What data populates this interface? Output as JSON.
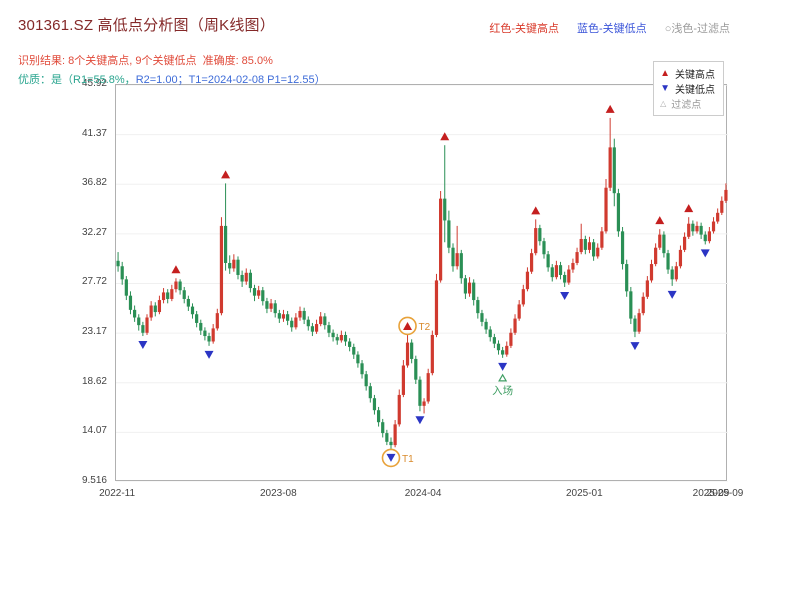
{
  "header": {
    "title": "301361.SZ 高低点分析图（周K线图）",
    "legend_high": "红色-关键高点",
    "legend_low": "蓝色-关键低点",
    "legend_filtered": "○浅色-过滤点",
    "result_line": "识别结果: 8个关键高点, 9个关键低点  准确度: 85.0%",
    "quality_prefix": "优质：是（R1=55.8%，",
    "quality_link": "R2=1.00；T1=2024-02-08 P1=12.55）"
  },
  "chart_data": {
    "type": "candlestick",
    "symbol": "301361.SZ",
    "freq": "weekly",
    "start_date": "2022-11-04",
    "ylim": [
      9.516,
      45.92
    ],
    "y_ticks": [
      "45.92",
      "41.37",
      "36.82",
      "32.27",
      "27.72",
      "23.17",
      "18.62",
      "14.07",
      "9.516"
    ],
    "x_ticks": [
      {
        "week": 0,
        "label": "2022-11"
      },
      {
        "week": 39,
        "label": "2023-08"
      },
      {
        "week": 74,
        "label": "2024-04"
      },
      {
        "week": 113,
        "label": "2025-01"
      },
      {
        "week": 148,
        "label": "2025-09"
      }
    ],
    "x_end_label": "2025-09",
    "colors": {
      "up": "#d03a2f",
      "down": "#2a8f55",
      "high_marker": "#c41f1f",
      "low_marker": "#2b35c4",
      "circle": "#e8a23a",
      "circle_label": "#d98a2b",
      "entry": "#3f9e63",
      "grid": "#f0f0f0"
    },
    "legend": {
      "high": "关键高点",
      "low": "关键低点",
      "filtered": "过滤点"
    },
    "key_highs": [
      {
        "week": 14,
        "value": 28.2
      },
      {
        "week": 26,
        "value": 36.9
      },
      {
        "week": 70,
        "value": 23.0,
        "label": "T2",
        "circled": true
      },
      {
        "week": 79,
        "value": 40.4
      },
      {
        "week": 101,
        "value": 33.6
      },
      {
        "week": 119,
        "value": 42.9
      },
      {
        "week": 131,
        "value": 32.7
      },
      {
        "week": 138,
        "value": 33.8
      }
    ],
    "key_lows": [
      {
        "week": 6,
        "value": 22.9
      },
      {
        "week": 22,
        "value": 22.0
      },
      {
        "week": 66,
        "value": 12.55,
        "label": "T1",
        "circled": true
      },
      {
        "week": 73,
        "value": 16.0
      },
      {
        "week": 93,
        "value": 20.9
      },
      {
        "week": 108,
        "value": 27.4
      },
      {
        "week": 125,
        "value": 22.8
      },
      {
        "week": 134,
        "value": 27.5
      },
      {
        "week": 142,
        "value": 31.3
      }
    ],
    "entry_annotation": {
      "week": 93,
      "label": "入场"
    },
    "candles": [
      [
        29.8,
        30.6,
        28.8,
        29.3
      ],
      [
        29.3,
        29.7,
        27.6,
        28.1
      ],
      [
        28.1,
        28.4,
        26.2,
        26.6
      ],
      [
        26.6,
        27.0,
        24.9,
        25.3
      ],
      [
        25.3,
        25.7,
        24.2,
        24.6
      ],
      [
        24.6,
        24.9,
        23.4,
        23.9
      ],
      [
        23.9,
        24.2,
        22.9,
        23.2
      ],
      [
        23.2,
        24.9,
        23.0,
        24.6
      ],
      [
        24.6,
        26.1,
        24.3,
        25.7
      ],
      [
        25.7,
        26.0,
        24.7,
        25.1
      ],
      [
        25.1,
        26.6,
        24.9,
        26.2
      ],
      [
        26.2,
        27.3,
        25.9,
        26.9
      ],
      [
        26.9,
        27.2,
        25.9,
        26.3
      ],
      [
        26.3,
        27.6,
        26.1,
        27.2
      ],
      [
        27.2,
        28.2,
        26.9,
        27.9
      ],
      [
        27.9,
        28.1,
        26.7,
        27.1
      ],
      [
        27.1,
        27.4,
        25.9,
        26.3
      ],
      [
        26.3,
        26.6,
        25.2,
        25.6
      ],
      [
        25.6,
        25.9,
        24.5,
        24.9
      ],
      [
        24.9,
        25.2,
        23.7,
        24.1
      ],
      [
        24.1,
        24.4,
        23.0,
        23.4
      ],
      [
        23.4,
        23.7,
        22.5,
        22.9
      ],
      [
        22.9,
        23.2,
        22.0,
        22.4
      ],
      [
        22.4,
        24.0,
        22.2,
        23.6
      ],
      [
        23.6,
        25.4,
        23.4,
        25.0
      ],
      [
        25.0,
        33.8,
        24.8,
        33.0
      ],
      [
        33.0,
        36.9,
        28.9,
        29.6
      ],
      [
        29.6,
        30.3,
        28.6,
        29.1
      ],
      [
        29.1,
        30.4,
        28.8,
        29.9
      ],
      [
        29.9,
        30.2,
        28.1,
        28.5
      ],
      [
        28.5,
        28.9,
        27.4,
        27.9
      ],
      [
        27.9,
        29.1,
        27.6,
        28.7
      ],
      [
        28.7,
        29.0,
        26.9,
        27.3
      ],
      [
        27.3,
        27.6,
        26.1,
        26.6
      ],
      [
        26.6,
        27.5,
        26.3,
        27.1
      ],
      [
        27.1,
        27.4,
        25.7,
        26.1
      ],
      [
        26.1,
        26.4,
        25.0,
        25.4
      ],
      [
        25.4,
        26.3,
        25.1,
        25.9
      ],
      [
        25.9,
        26.2,
        24.6,
        25.0
      ],
      [
        25.0,
        25.3,
        24.1,
        24.5
      ],
      [
        24.5,
        25.3,
        24.2,
        24.9
      ],
      [
        24.9,
        25.2,
        23.9,
        24.3
      ],
      [
        24.3,
        24.6,
        23.3,
        23.7
      ],
      [
        23.7,
        25.0,
        23.5,
        24.6
      ],
      [
        24.6,
        25.6,
        24.3,
        25.2
      ],
      [
        25.2,
        25.5,
        24.0,
        24.4
      ],
      [
        24.4,
        24.7,
        23.4,
        23.8
      ],
      [
        23.8,
        24.1,
        22.9,
        23.3
      ],
      [
        23.3,
        24.4,
        23.1,
        24.0
      ],
      [
        24.0,
        25.1,
        23.8,
        24.7
      ],
      [
        24.7,
        25.0,
        23.5,
        23.9
      ],
      [
        23.9,
        24.2,
        22.8,
        23.2
      ],
      [
        23.2,
        23.5,
        22.4,
        22.8
      ],
      [
        22.8,
        23.1,
        22.1,
        22.5
      ],
      [
        22.5,
        23.4,
        22.3,
        23.0
      ],
      [
        23.0,
        23.3,
        22.0,
        22.4
      ],
      [
        22.4,
        22.7,
        21.5,
        21.9
      ],
      [
        21.9,
        22.2,
        20.8,
        21.2
      ],
      [
        21.2,
        21.5,
        20.0,
        20.4
      ],
      [
        20.4,
        20.7,
        19.0,
        19.4
      ],
      [
        19.4,
        19.7,
        17.9,
        18.3
      ],
      [
        18.3,
        18.6,
        16.8,
        17.2
      ],
      [
        17.2,
        17.5,
        15.7,
        16.1
      ],
      [
        16.1,
        16.4,
        14.6,
        15.0
      ],
      [
        15.0,
        15.3,
        13.6,
        14.0
      ],
      [
        14.0,
        14.3,
        12.9,
        13.2
      ],
      [
        13.2,
        13.6,
        12.55,
        12.9
      ],
      [
        12.9,
        15.2,
        12.7,
        14.8
      ],
      [
        14.8,
        18.0,
        14.6,
        17.5
      ],
      [
        17.5,
        20.7,
        17.3,
        20.2
      ],
      [
        20.2,
        23.0,
        20.0,
        22.3
      ],
      [
        22.3,
        22.6,
        20.4,
        20.8
      ],
      [
        20.8,
        21.1,
        18.5,
        18.9
      ],
      [
        18.9,
        19.2,
        16.0,
        16.5
      ],
      [
        16.5,
        17.2,
        15.8,
        16.9
      ],
      [
        16.9,
        19.9,
        16.7,
        19.5
      ],
      [
        19.5,
        23.4,
        19.3,
        23.0
      ],
      [
        23.0,
        28.6,
        22.8,
        28.0
      ],
      [
        28.0,
        36.2,
        27.8,
        35.5
      ],
      [
        35.5,
        40.4,
        31.5,
        33.5
      ],
      [
        33.5,
        34.4,
        30.5,
        31.0
      ],
      [
        31.0,
        31.4,
        28.8,
        29.3
      ],
      [
        29.3,
        33.0,
        29.0,
        30.5
      ],
      [
        30.5,
        30.8,
        27.7,
        28.2
      ],
      [
        28.2,
        28.5,
        26.3,
        26.8
      ],
      [
        26.8,
        28.3,
        26.5,
        27.8
      ],
      [
        27.8,
        28.1,
        25.7,
        26.2
      ],
      [
        26.2,
        26.5,
        24.5,
        25.0
      ],
      [
        25.0,
        25.3,
        23.8,
        24.2
      ],
      [
        24.2,
        24.5,
        23.1,
        23.5
      ],
      [
        23.5,
        23.8,
        22.4,
        22.8
      ],
      [
        22.8,
        23.1,
        21.8,
        22.2
      ],
      [
        22.2,
        22.5,
        21.2,
        21.6
      ],
      [
        21.6,
        21.9,
        20.9,
        21.2
      ],
      [
        21.2,
        22.4,
        21.0,
        22.0
      ],
      [
        22.0,
        23.6,
        21.8,
        23.2
      ],
      [
        23.2,
        24.9,
        23.0,
        24.5
      ],
      [
        24.5,
        26.2,
        24.3,
        25.8
      ],
      [
        25.8,
        27.6,
        25.6,
        27.2
      ],
      [
        27.2,
        29.2,
        27.0,
        28.8
      ],
      [
        28.8,
        30.9,
        28.6,
        30.5
      ],
      [
        30.5,
        33.6,
        30.3,
        32.8
      ],
      [
        32.8,
        33.1,
        31.2,
        31.6
      ],
      [
        31.6,
        31.9,
        30.0,
        30.4
      ],
      [
        30.4,
        30.7,
        28.8,
        29.2
      ],
      [
        29.2,
        29.5,
        27.9,
        28.3
      ],
      [
        28.3,
        29.8,
        28.1,
        29.4
      ],
      [
        29.4,
        29.7,
        28.1,
        28.5
      ],
      [
        28.5,
        28.8,
        27.4,
        27.8
      ],
      [
        27.8,
        29.4,
        27.6,
        29.0
      ],
      [
        29.0,
        30.0,
        28.7,
        29.6
      ],
      [
        29.6,
        31.0,
        29.4,
        30.6
      ],
      [
        30.6,
        33.2,
        30.4,
        31.8
      ],
      [
        31.8,
        32.1,
        30.4,
        30.8
      ],
      [
        30.8,
        32.0,
        30.5,
        31.5
      ],
      [
        31.5,
        31.8,
        29.8,
        30.2
      ],
      [
        30.2,
        31.4,
        30.0,
        31.0
      ],
      [
        31.0,
        32.9,
        30.8,
        32.5
      ],
      [
        32.5,
        37.3,
        32.3,
        36.5
      ],
      [
        36.5,
        42.9,
        36.2,
        40.2
      ],
      [
        40.2,
        41.0,
        34.8,
        36.0
      ],
      [
        36.0,
        36.4,
        32.0,
        32.5
      ],
      [
        32.5,
        32.9,
        29.0,
        29.5
      ],
      [
        29.5,
        29.9,
        26.5,
        27.0
      ],
      [
        27.0,
        27.4,
        24.0,
        24.5
      ],
      [
        24.5,
        24.8,
        22.8,
        23.3
      ],
      [
        23.3,
        25.4,
        23.1,
        25.0
      ],
      [
        25.0,
        26.9,
        24.8,
        26.5
      ],
      [
        26.5,
        28.4,
        26.3,
        28.0
      ],
      [
        28.0,
        29.9,
        27.8,
        29.5
      ],
      [
        29.5,
        31.4,
        29.3,
        31.0
      ],
      [
        31.0,
        32.7,
        30.8,
        32.2
      ],
      [
        32.2,
        32.5,
        30.1,
        30.5
      ],
      [
        30.5,
        30.8,
        28.6,
        29.0
      ],
      [
        29.0,
        29.3,
        27.5,
        28.1
      ],
      [
        28.1,
        29.7,
        27.9,
        29.3
      ],
      [
        29.3,
        31.2,
        29.1,
        30.8
      ],
      [
        30.8,
        32.4,
        30.6,
        32.0
      ],
      [
        32.0,
        33.8,
        31.8,
        33.2
      ],
      [
        33.2,
        33.5,
        32.1,
        32.5
      ],
      [
        32.5,
        33.4,
        32.3,
        33.0
      ],
      [
        33.0,
        33.3,
        31.8,
        32.2
      ],
      [
        32.2,
        32.5,
        31.3,
        31.6
      ],
      [
        31.6,
        32.9,
        31.4,
        32.5
      ],
      [
        32.5,
        33.8,
        32.3,
        33.4
      ],
      [
        33.4,
        34.6,
        33.2,
        34.2
      ],
      [
        34.2,
        35.7,
        34.0,
        35.3
      ],
      [
        35.3,
        36.9,
        35.1,
        36.3
      ]
    ]
  }
}
